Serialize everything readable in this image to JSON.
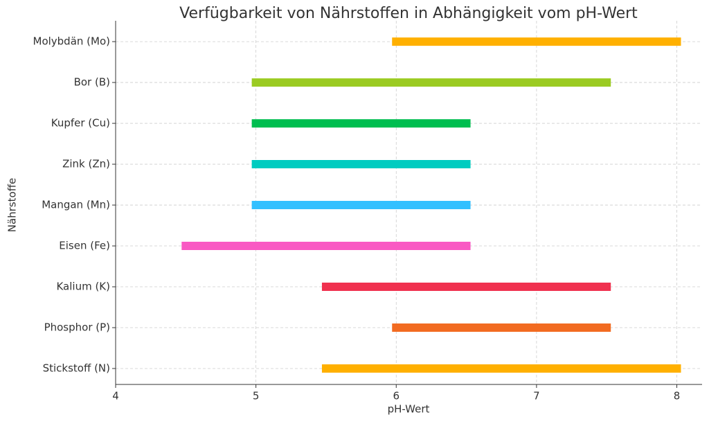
{
  "chart_data": {
    "type": "range-bar",
    "title": "Verfügbarkeit von Nährstoffen in Abhängigkeit vom pH-Wert",
    "x_label": "pH-Wert",
    "y_label": "Nährstoffe",
    "categories": [
      "Stickstoff (N)",
      "Phosphor (P)",
      "Kalium (K)",
      "Eisen (Fe)",
      "Mangan (Mn)",
      "Zink (Zn)",
      "Kupfer (Cu)",
      "Bor (B)",
      "Molybdän (Mo)"
    ],
    "start": [
      5.5,
      6,
      5.5,
      4.5,
      5,
      5,
      5,
      5,
      6
    ],
    "end": [
      8,
      7.5,
      7.5,
      6.5,
      6.5,
      6.5,
      6.5,
      7.5,
      8
    ],
    "colors": [
      "#ffb000",
      "#f26b21",
      "#f0314f",
      "#f959c3",
      "#33c0ff",
      "#00ccc0",
      "#00be50",
      "#9bcb22",
      "#ffb000"
    ],
    "xlim": [
      4,
      8.18
    ],
    "xticks": [
      4,
      5,
      6,
      7,
      8
    ],
    "grid": true
  }
}
